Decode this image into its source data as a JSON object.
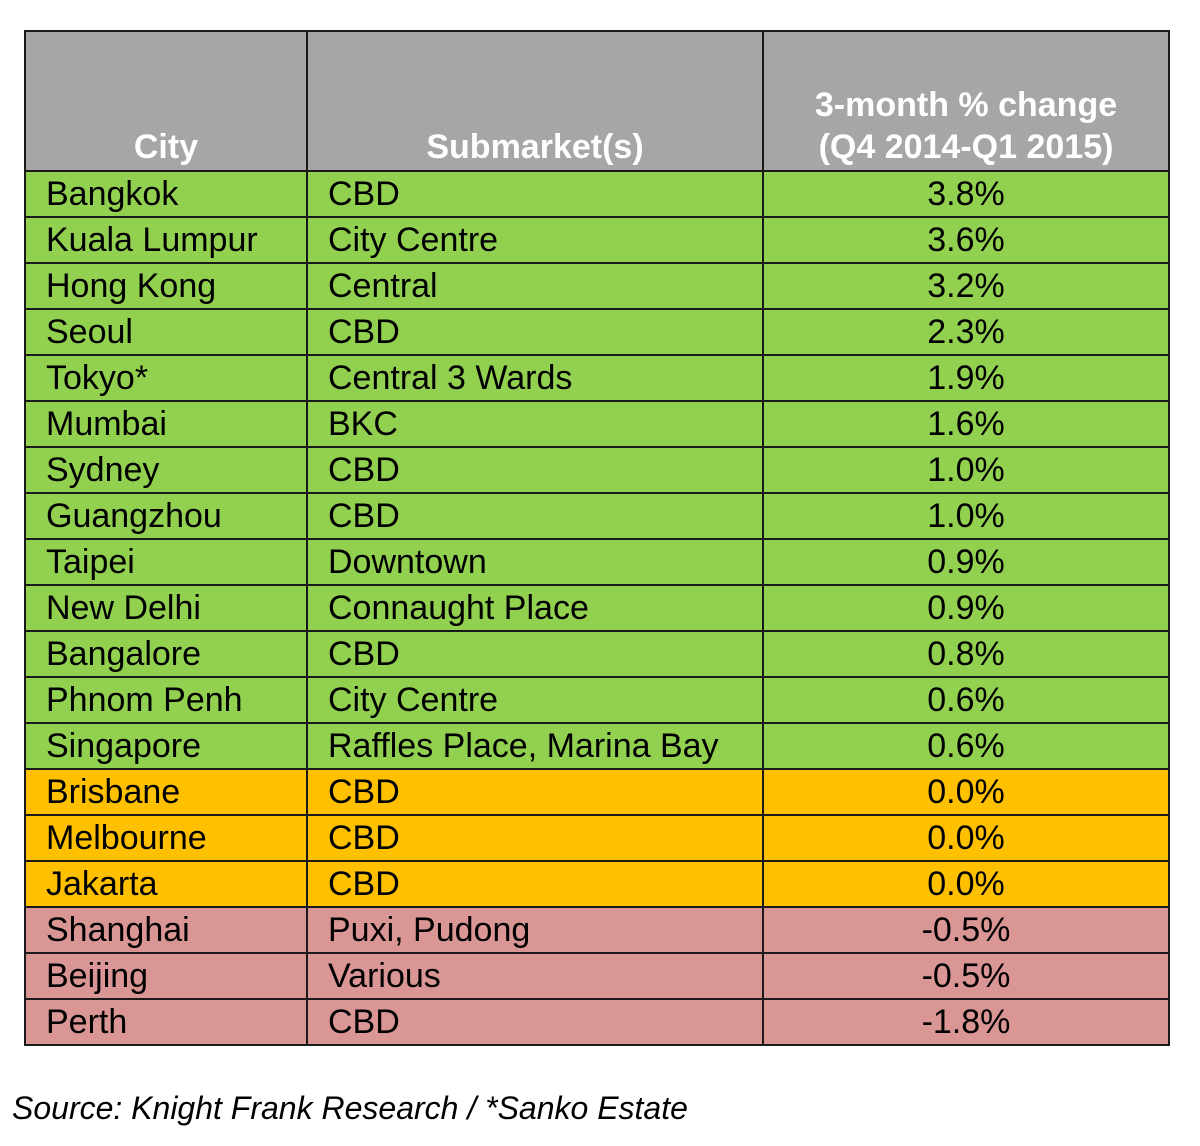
{
  "chart_data": {
    "type": "table",
    "columns": [
      "City",
      "Submarket(s)",
      "3-month % change",
      "(Q4 2014-Q1 2015)"
    ],
    "colors": {
      "header": "#a6a6a6",
      "positive": "#92d050",
      "neutral": "#ffc000",
      "negative": "#da9694"
    },
    "rows": [
      {
        "city": "Bangkok",
        "submarket": "CBD",
        "value": 3.8,
        "label": "3.8%",
        "status": "positive"
      },
      {
        "city": "Kuala Lumpur",
        "submarket": "City Centre",
        "value": 3.6,
        "label": "3.6%",
        "status": "positive"
      },
      {
        "city": "Hong Kong",
        "submarket": "Central",
        "value": 3.2,
        "label": "3.2%",
        "status": "positive"
      },
      {
        "city": "Seoul",
        "submarket": "CBD",
        "value": 2.3,
        "label": "2.3%",
        "status": "positive"
      },
      {
        "city": "Tokyo*",
        "submarket": "Central 3 Wards",
        "value": 1.9,
        "label": "1.9%",
        "status": "positive"
      },
      {
        "city": "Mumbai",
        "submarket": "BKC",
        "value": 1.6,
        "label": "1.6%",
        "status": "positive"
      },
      {
        "city": "Sydney",
        "submarket": "CBD",
        "value": 1.0,
        "label": "1.0%",
        "status": "positive"
      },
      {
        "city": "Guangzhou",
        "submarket": "CBD",
        "value": 1.0,
        "label": "1.0%",
        "status": "positive"
      },
      {
        "city": "Taipei",
        "submarket": "Downtown",
        "value": 0.9,
        "label": "0.9%",
        "status": "positive"
      },
      {
        "city": "New Delhi",
        "submarket": "Connaught Place",
        "value": 0.9,
        "label": "0.9%",
        "status": "positive"
      },
      {
        "city": "Bangalore",
        "submarket": "CBD",
        "value": 0.8,
        "label": "0.8%",
        "status": "positive"
      },
      {
        "city": "Phnom Penh",
        "submarket": "City Centre",
        "value": 0.6,
        "label": "0.6%",
        "status": "positive"
      },
      {
        "city": "Singapore",
        "submarket": "Raffles Place, Marina Bay",
        "value": 0.6,
        "label": "0.6%",
        "status": "positive"
      },
      {
        "city": "Brisbane",
        "submarket": "CBD",
        "value": 0.0,
        "label": "0.0%",
        "status": "neutral"
      },
      {
        "city": "Melbourne",
        "submarket": "CBD",
        "value": 0.0,
        "label": "0.0%",
        "status": "neutral"
      },
      {
        "city": "Jakarta",
        "submarket": "CBD",
        "value": 0.0,
        "label": "0.0%",
        "status": "neutral"
      },
      {
        "city": "Shanghai",
        "submarket": "Puxi, Pudong",
        "value": -0.5,
        "label": "-0.5%",
        "status": "negative"
      },
      {
        "city": "Beijing",
        "submarket": "Various",
        "value": -0.5,
        "label": "-0.5%",
        "status": "negative"
      },
      {
        "city": "Perth",
        "submarket": "CBD",
        "value": -1.8,
        "label": "-1.8%",
        "status": "negative"
      }
    ]
  },
  "source": "Source: Knight Frank Research / *Sanko Estate"
}
